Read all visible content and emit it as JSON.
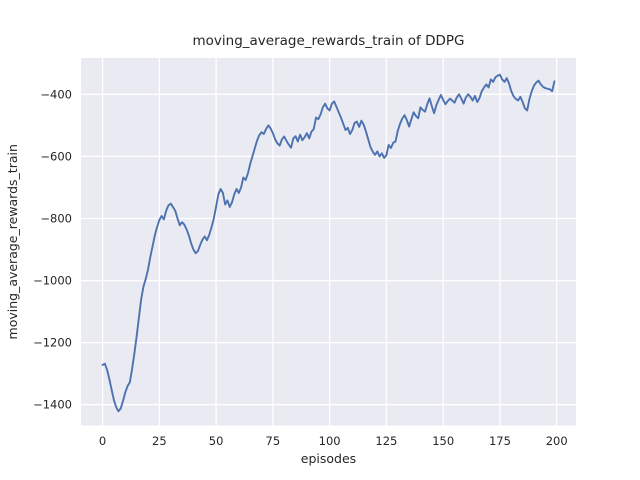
{
  "figure": {
    "background": "#ffffff",
    "axes_background": "#eaeaf2",
    "grid_color": "#ffffff",
    "text_color": "#262626",
    "line_color": "#4c72b0"
  },
  "chart_data": {
    "type": "line",
    "title": "moving_average_rewards_train of DDPG",
    "xlabel": "episodes",
    "ylabel": "moving_average_rewards_train",
    "xlim": [
      -9.5,
      208.5
    ],
    "ylim": [
      -1467,
      -283
    ],
    "x_ticks": [
      0,
      25,
      50,
      75,
      100,
      125,
      150,
      175,
      200
    ],
    "x_tick_labels": [
      "0",
      "25",
      "50",
      "75",
      "100",
      "125",
      "150",
      "175",
      "200"
    ],
    "y_ticks": [
      -1400,
      -1200,
      -1000,
      -800,
      -600,
      -400
    ],
    "y_tick_labels": [
      "−1400",
      "−1200",
      "−1000",
      "−800",
      "−600",
      "−400"
    ],
    "grid": true,
    "legend_position": "none",
    "series": [
      {
        "name": "moving_average_rewards_train",
        "x": [
          0,
          1,
          2,
          3,
          4,
          5,
          6,
          7,
          8,
          9,
          10,
          11,
          12,
          13,
          14,
          15,
          16,
          17,
          18,
          19,
          20,
          21,
          22,
          23,
          24,
          25,
          26,
          27,
          28,
          29,
          30,
          31,
          32,
          33,
          34,
          35,
          36,
          37,
          38,
          39,
          40,
          41,
          42,
          43,
          44,
          45,
          46,
          47,
          48,
          49,
          50,
          51,
          52,
          53,
          54,
          55,
          56,
          57,
          58,
          59,
          60,
          61,
          62,
          63,
          64,
          65,
          66,
          67,
          68,
          69,
          70,
          71,
          72,
          73,
          74,
          75,
          76,
          77,
          78,
          79,
          80,
          81,
          82,
          83,
          84,
          85,
          86,
          87,
          88,
          89,
          90,
          91,
          92,
          93,
          94,
          95,
          96,
          97,
          98,
          99,
          100,
          101,
          102,
          103,
          104,
          105,
          106,
          107,
          108,
          109,
          110,
          111,
          112,
          113,
          114,
          115,
          116,
          117,
          118,
          119,
          120,
          121,
          122,
          123,
          124,
          125,
          126,
          127,
          128,
          129,
          130,
          131,
          132,
          133,
          134,
          135,
          136,
          137,
          138,
          139,
          140,
          141,
          142,
          143,
          144,
          145,
          146,
          147,
          148,
          149,
          150,
          151,
          152,
          153,
          154,
          155,
          156,
          157,
          158,
          159,
          160,
          161,
          162,
          163,
          164,
          165,
          166,
          167,
          168,
          169,
          170,
          171,
          172,
          173,
          174,
          175,
          176,
          177,
          178,
          179,
          180,
          181,
          182,
          183,
          184,
          185,
          186,
          187,
          188,
          189,
          190,
          191,
          192,
          193,
          194,
          195,
          196,
          197,
          198,
          199
        ],
        "values": [
          -1272,
          -1268,
          -1288,
          -1318,
          -1352,
          -1385,
          -1408,
          -1421,
          -1412,
          -1388,
          -1360,
          -1340,
          -1328,
          -1285,
          -1235,
          -1180,
          -1120,
          -1060,
          -1020,
          -995,
          -965,
          -925,
          -890,
          -855,
          -828,
          -805,
          -792,
          -803,
          -775,
          -758,
          -752,
          -763,
          -775,
          -800,
          -822,
          -812,
          -820,
          -835,
          -855,
          -880,
          -900,
          -912,
          -905,
          -885,
          -868,
          -858,
          -870,
          -852,
          -828,
          -800,
          -762,
          -722,
          -705,
          -718,
          -755,
          -742,
          -763,
          -748,
          -722,
          -705,
          -718,
          -700,
          -668,
          -676,
          -655,
          -625,
          -600,
          -575,
          -550,
          -532,
          -522,
          -528,
          -512,
          -500,
          -510,
          -525,
          -545,
          -558,
          -565,
          -545,
          -536,
          -550,
          -562,
          -572,
          -542,
          -535,
          -552,
          -530,
          -548,
          -538,
          -525,
          -542,
          -520,
          -512,
          -475,
          -480,
          -465,
          -442,
          -430,
          -445,
          -452,
          -430,
          -423,
          -440,
          -458,
          -475,
          -495,
          -515,
          -508,
          -528,
          -515,
          -492,
          -488,
          -505,
          -485,
          -498,
          -520,
          -545,
          -570,
          -585,
          -595,
          -584,
          -600,
          -590,
          -605,
          -596,
          -563,
          -573,
          -556,
          -552,
          -518,
          -495,
          -478,
          -467,
          -483,
          -504,
          -480,
          -458,
          -470,
          -477,
          -442,
          -450,
          -456,
          -432,
          -413,
          -438,
          -461,
          -435,
          -418,
          -402,
          -418,
          -432,
          -422,
          -414,
          -420,
          -427,
          -410,
          -400,
          -414,
          -430,
          -410,
          -400,
          -408,
          -420,
          -405,
          -425,
          -412,
          -390,
          -378,
          -368,
          -378,
          -352,
          -360,
          -345,
          -340,
          -337,
          -352,
          -360,
          -348,
          -365,
          -390,
          -406,
          -415,
          -420,
          -408,
          -425,
          -445,
          -452,
          -415,
          -390,
          -372,
          -362,
          -356,
          -368,
          -376,
          -380,
          -382,
          -384,
          -390,
          -358
        ]
      }
    ]
  }
}
